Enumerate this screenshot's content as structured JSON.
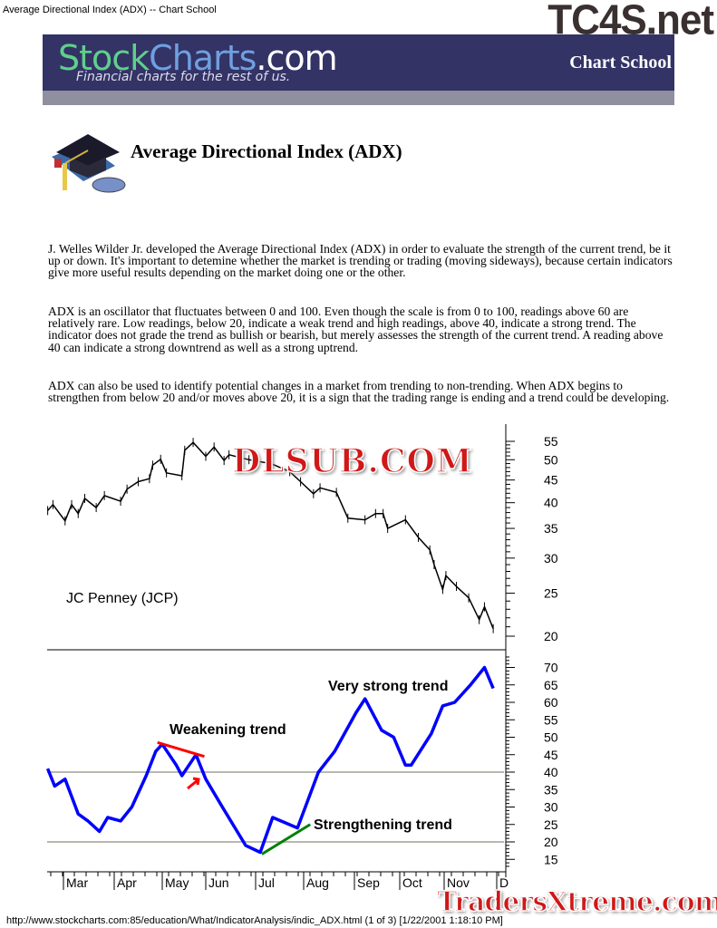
{
  "doc_title": "Average Directional Index (ADX) -- Chart School",
  "watermarks": {
    "top": "TC4S.net",
    "middle": "DLSUB.COM",
    "bottom": "TradersXtreme.com"
  },
  "banner": {
    "logo_parts": [
      "Stock",
      "Charts",
      ".com"
    ],
    "tagline": "Financial charts for the rest of us.",
    "section": "Chart School"
  },
  "page_title": "Average Directional Index (ADX)",
  "paragraphs": [
    "J. Welles Wilder Jr. developed the Average Directional Index (ADX) in order to evaluate the strength of the current trend, be it up or down. It's important to detemine whether the market is trending or trading (moving sideways), because certain indicators give more useful results depending on the market doing one or the other.",
    "ADX is an oscillator that fluctuates between 0 and 100. Even though the scale is from 0 to 100, readings above 60 are relatively rare. Low readings, below 20, indicate a weak trend and high readings, above 40, indicate a strong trend. The indicator does not grade the trend as bullish or bearish, but merely assesses the strength of the current trend. A reading above 40 can indicate a strong downtrend as well as a strong uptrend.",
    "ADX can also be used to identify potential changes in a market from trending to non-trending. When ADX begins to strengthen from below 20 and/or moves above 20, it is a sign that the trading range is ending and a trend could be developing."
  ],
  "footer": "http://www.stockcharts.com:85/education/What/IndicatorAnalysis/indic_ADX.html (1 of 3) [1/22/2001 1:18:10 PM]",
  "chart_data": [
    {
      "type": "line",
      "title": "JC Penney (JCP)",
      "yscale": "log",
      "ylim": [
        20,
        55
      ],
      "yticks": [
        55,
        50,
        45,
        40,
        35,
        30,
        25,
        20
      ],
      "x_ticks": [
        "Mar",
        "Apr",
        "May",
        "Jun",
        "Jul",
        "Aug",
        "Sep",
        "Oct",
        "Nov",
        "D"
      ],
      "color": "#000000",
      "x": [
        "2000-02-21",
        "2000-02-24",
        "2000-03-02",
        "2000-03-06",
        "2000-03-10",
        "2000-03-14",
        "2000-03-21",
        "2000-03-26",
        "2000-04-05",
        "2000-04-09",
        "2000-04-16",
        "2000-04-23",
        "2000-04-25",
        "2000-04-30",
        "2000-05-04",
        "2000-05-15",
        "2000-05-17",
        "2000-05-23",
        "2000-06-01",
        "2000-06-06",
        "2000-06-12",
        "2000-06-15",
        "2000-06-27",
        "2000-07-11",
        "2000-07-23",
        "2000-07-30",
        "2000-08-07",
        "2000-08-11",
        "2000-08-21",
        "2000-08-28",
        "2000-09-08",
        "2000-09-15",
        "2000-09-20",
        "2000-09-23",
        "2000-10-05",
        "2000-10-14",
        "2000-10-22",
        "2000-10-25",
        "2000-10-31",
        "2000-11-02",
        "2000-11-08",
        "2000-11-15",
        "2000-11-21",
        "2000-11-24",
        "2000-11-29"
      ],
      "y": [
        38.4,
        39.6,
        36.4,
        39.6,
        37.8,
        40.9,
        39.0,
        41.5,
        40.3,
        42.9,
        44.6,
        45.3,
        48.6,
        50.1,
        46.7,
        46.0,
        52.5,
        54.7,
        50.9,
        53.4,
        49.8,
        51.3,
        50,
        49,
        47,
        44.6,
        41.9,
        43.2,
        42.2,
        36.9,
        36.6,
        37.8,
        37.8,
        35.0,
        36.6,
        33.4,
        31.3,
        29.0,
        25.5,
        27.4,
        25.9,
        24.4,
        21.8,
        23.3,
        20.8
      ]
    },
    {
      "type": "line",
      "ylim": [
        12,
        75
      ],
      "yticks": [
        70,
        65,
        60,
        55,
        50,
        45,
        40,
        35,
        30,
        25,
        20,
        15
      ],
      "reference_lines": [
        40,
        20
      ],
      "color": "#0000ff",
      "x": [
        "2000-02-21",
        "2000-02-25",
        "2000-03-02",
        "2000-03-10",
        "2000-03-16",
        "2000-03-23",
        "2000-03-28",
        "2000-04-05",
        "2000-04-12",
        "2000-04-21",
        "2000-04-27",
        "2000-05-01",
        "2000-05-11",
        "2000-05-15",
        "2000-05-25",
        "2000-06-01",
        "2000-06-11",
        "2000-06-25",
        "2000-07-04",
        "2000-07-12",
        "2000-07-28",
        "2000-08-10",
        "2000-08-20",
        "2000-09-02",
        "2000-09-08",
        "2000-09-19",
        "2000-09-27",
        "2000-10-05",
        "2000-10-09",
        "2000-10-23",
        "2000-10-31",
        "2000-11-07",
        "2000-11-16",
        "2000-11-24",
        "2000-11-29"
      ],
      "y": [
        41,
        36,
        38,
        28,
        26,
        23,
        27,
        26,
        30,
        39,
        46,
        48,
        42,
        39,
        45,
        38,
        30,
        19,
        17,
        27,
        24,
        40,
        46,
        57,
        61,
        52,
        50,
        42,
        42,
        51,
        59,
        60,
        65,
        70,
        64
      ],
      "annotations": [
        {
          "text": "Weakening trend",
          "line": {
            "from": [
              "2000-04-28",
              48.5
            ],
            "to": [
              "2000-05-31",
              44.5
            ],
            "color": "#ff0000"
          }
        },
        {
          "text": "Strengthening trend",
          "line": {
            "from": [
              "2000-07-05",
              16.5
            ],
            "to": [
              "2000-08-05",
              25
            ],
            "color": "#008000"
          }
        },
        {
          "text": "Very strong trend"
        }
      ]
    }
  ]
}
